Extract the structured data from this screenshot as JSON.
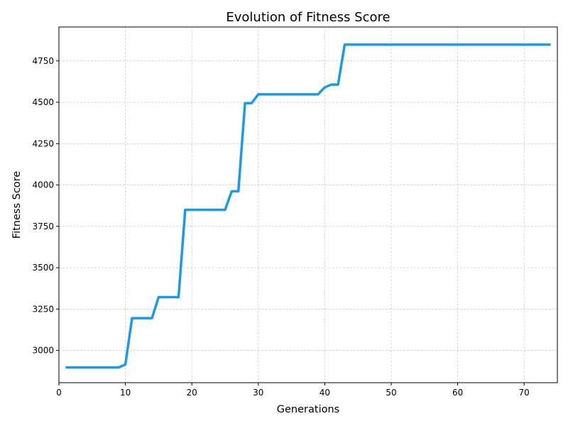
{
  "chart_data": {
    "type": "line",
    "title": "Evolution of Fitness Score",
    "xlabel": "Generations",
    "ylabel": "Fitness Score",
    "xlim": [
      0,
      75
    ],
    "ylim": [
      2805,
      4955
    ],
    "x_ticks": [
      0,
      10,
      20,
      30,
      40,
      50,
      60,
      70
    ],
    "y_ticks": [
      3000,
      3250,
      3500,
      3750,
      4000,
      4250,
      4500,
      4750
    ],
    "grid": true,
    "line_color": "#1a9ae8",
    "series": [
      {
        "x": [
          1,
          2,
          3,
          4,
          5,
          6,
          7,
          8,
          9,
          10,
          11,
          12,
          13,
          14,
          15,
          16,
          17,
          18,
          19,
          20,
          21,
          22,
          23,
          24,
          25,
          26,
          27,
          28,
          29,
          30,
          31,
          32,
          33,
          34,
          35,
          36,
          37,
          38,
          39,
          40,
          41,
          42,
          43,
          44,
          45,
          46,
          47,
          48,
          49,
          50,
          51,
          52,
          53,
          54,
          55,
          56,
          57,
          58,
          59,
          60,
          61,
          62,
          63,
          64,
          65,
          66,
          67,
          68,
          69,
          70,
          71,
          72,
          73,
          74
        ],
        "values": [
          2897,
          2897,
          2897,
          2897,
          2897,
          2897,
          2897,
          2897,
          2897,
          2915,
          3195,
          3195,
          3195,
          3195,
          3322,
          3322,
          3322,
          3322,
          3850,
          3850,
          3850,
          3850,
          3850,
          3850,
          3850,
          3962,
          3962,
          4495,
          4495,
          4548,
          4548,
          4548,
          4548,
          4548,
          4548,
          4548,
          4548,
          4548,
          4548,
          4590,
          4607,
          4607,
          4848,
          4848,
          4848,
          4848,
          4848,
          4848,
          4848,
          4848,
          4848,
          4848,
          4848,
          4848,
          4848,
          4848,
          4848,
          4848,
          4848,
          4848,
          4848,
          4848,
          4848,
          4848,
          4848,
          4848,
          4848,
          4848,
          4848,
          4848,
          4848,
          4848,
          4848,
          4848
        ]
      }
    ]
  }
}
